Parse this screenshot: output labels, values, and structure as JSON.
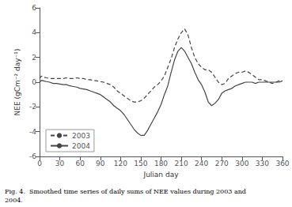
{
  "chart_data": {
    "type": "line",
    "xlabel": "Julian day",
    "ylabel": "NEE (gCm⁻² day⁻¹)",
    "caption": "Fig. 4.  Smoothed time series of daily sums of NEE values during 2003 and\n2004.",
    "xlim": [
      0,
      360
    ],
    "ylim": [
      -6,
      6
    ],
    "xticks": [
      0,
      30,
      60,
      90,
      120,
      150,
      180,
      210,
      240,
      270,
      300,
      330,
      360
    ],
    "yticks": [
      -6,
      -4,
      -2,
      0,
      2,
      4,
      6
    ],
    "grid": false,
    "legend": "lower left",
    "x": [
      0,
      3,
      6,
      10,
      15,
      20,
      25,
      30,
      35,
      40,
      45,
      50,
      55,
      60,
      65,
      70,
      75,
      80,
      85,
      90,
      95,
      100,
      105,
      110,
      115,
      120,
      125,
      130,
      135,
      140,
      145,
      150,
      155,
      160,
      165,
      170,
      175,
      180,
      185,
      190,
      195,
      200,
      205,
      210,
      215,
      220,
      225,
      230,
      235,
      240,
      245,
      250,
      255,
      260,
      265,
      270,
      275,
      280,
      285,
      290,
      295,
      300,
      305,
      310,
      315,
      320,
      325,
      330,
      335,
      340,
      345,
      350,
      355,
      360
    ],
    "series": [
      {
        "name": "2003",
        "color": "#444444",
        "line_style": "dashed",
        "values": [
          0.3,
          0.5,
          0.4,
          0.35,
          0.3,
          0.3,
          0.3,
          0.3,
          0.3,
          0.35,
          0.3,
          0.3,
          0.35,
          0.3,
          0.3,
          0.2,
          0.2,
          0.15,
          0.1,
          0.05,
          0.0,
          -0.1,
          -0.2,
          -0.4,
          -0.7,
          -0.9,
          -1.1,
          -1.3,
          -1.5,
          -1.6,
          -1.6,
          -1.5,
          -1.3,
          -1.0,
          -0.7,
          -0.4,
          -0.2,
          0.1,
          0.5,
          1.2,
          1.9,
          2.8,
          3.5,
          4.0,
          4.3,
          3.8,
          2.8,
          2.0,
          1.5,
          1.2,
          1.0,
          1.0,
          0.8,
          0.4,
          0.0,
          -0.2,
          -0.1,
          0.3,
          0.5,
          0.7,
          0.8,
          0.8,
          0.9,
          0.8,
          0.6,
          0.4,
          0.2,
          0.2,
          0.1,
          0.0,
          -0.1,
          0.0,
          0.1,
          0.1
        ]
      },
      {
        "name": "2004",
        "color": "#444444",
        "line_style": "solid",
        "values": [
          0.0,
          0.15,
          0.1,
          0.05,
          0.0,
          -0.1,
          -0.1,
          -0.15,
          -0.2,
          -0.2,
          -0.3,
          -0.35,
          -0.4,
          -0.5,
          -0.55,
          -0.6,
          -0.7,
          -0.8,
          -0.9,
          -1.0,
          -1.2,
          -1.4,
          -1.6,
          -1.9,
          -2.1,
          -2.3,
          -2.6,
          -3.0,
          -3.4,
          -3.8,
          -4.1,
          -4.3,
          -4.3,
          -3.9,
          -3.4,
          -2.9,
          -2.4,
          -1.8,
          -1.0,
          -0.3,
          0.8,
          1.8,
          2.5,
          2.8,
          2.5,
          2.0,
          1.5,
          0.8,
          0.2,
          -0.2,
          -0.8,
          -1.6,
          -1.9,
          -1.7,
          -1.4,
          -0.9,
          -0.7,
          -0.6,
          -0.5,
          -0.3,
          -0.2,
          -0.1,
          0.0,
          0.0,
          0.0,
          -0.1,
          0.0,
          0.0,
          0.0,
          0.0,
          0.0,
          0.0,
          0.0,
          0.1
        ]
      }
    ]
  }
}
